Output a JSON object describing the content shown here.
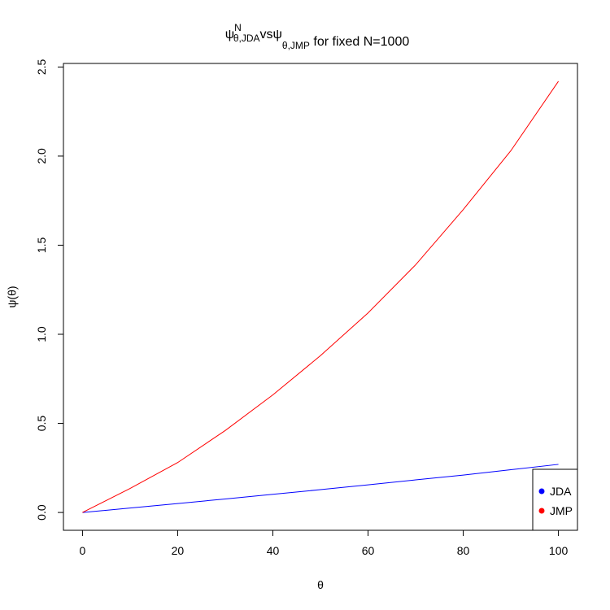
{
  "chart_data": {
    "type": "line",
    "title_segments": [
      {
        "text": "ψ"
      },
      {
        "text": "N",
        "pos": "sup"
      },
      {
        "text": "θ,JDA",
        "pos": "sub"
      },
      {
        "text": "vs"
      },
      {
        "text": "ψ"
      },
      {
        "text": "θ,JMP",
        "pos": "sub"
      },
      {
        "text": " for fixed N=1000"
      }
    ],
    "x_label": "θ",
    "y_label": "ψ(θ)",
    "x": [
      0,
      10,
      20,
      30,
      40,
      50,
      60,
      70,
      80,
      90,
      100
    ],
    "series": [
      {
        "name": "JDA",
        "color": "#0000ff",
        "values": [
          0,
          0.025,
          0.05,
          0.076,
          0.102,
          0.128,
          0.155,
          0.183,
          0.21,
          0.24,
          0.27
        ]
      },
      {
        "name": "JMP",
        "color": "#ff0000",
        "values": [
          0,
          0.135,
          0.28,
          0.46,
          0.66,
          0.88,
          1.12,
          1.39,
          1.7,
          2.03,
          2.42
        ]
      }
    ],
    "xlim": [
      -4,
      104
    ],
    "ylim": [
      -0.1,
      2.52
    ],
    "xticks": [
      0,
      20,
      40,
      60,
      80,
      100
    ],
    "yticks": [
      {
        "value": 0,
        "label": "0.0"
      },
      {
        "value": 0.5,
        "label": "0.5"
      },
      {
        "value": 1,
        "label": "1.0"
      },
      {
        "value": 1.5,
        "label": "1.5"
      },
      {
        "value": 2,
        "label": "2.0"
      },
      {
        "value": 2.5,
        "label": "2.5"
      }
    ],
    "grid": false,
    "legend": "bottomright"
  }
}
